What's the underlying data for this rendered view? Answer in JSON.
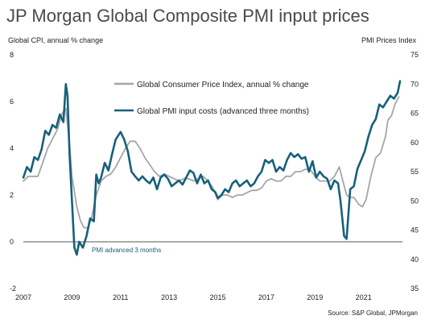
{
  "chart_data": {
    "type": "line",
    "title": "JP Morgan Global Composite PMI input prices",
    "ylabel_left": "Global CPI, annual % change",
    "ylabel_right": "PMI Prices Index",
    "source": "Source: S&P Global, JPMorgan",
    "annotation": "PMI advanced 3 months",
    "x_range": [
      2007.0,
      2022.6
    ],
    "x_ticks": [
      "2007",
      "2009",
      "2011",
      "2013",
      "2015",
      "2017",
      "2019",
      "2021"
    ],
    "y_left_range": [
      -2,
      8
    ],
    "y_left_ticks": [
      "-2",
      "0",
      "2",
      "4",
      "6",
      "8"
    ],
    "y_right_range": [
      35,
      75
    ],
    "y_right_ticks": [
      "35",
      "40",
      "45",
      "50",
      "55",
      "60",
      "65",
      "70",
      "75"
    ],
    "reference_line_left": 0,
    "series": [
      {
        "name": "Global Consumer Price Index, annual % change",
        "color": "#a6a6a6",
        "axis": "left",
        "points": [
          [
            2007.0,
            2.6
          ],
          [
            2007.2,
            2.8
          ],
          [
            2007.4,
            2.8
          ],
          [
            2007.6,
            2.8
          ],
          [
            2007.8,
            3.4
          ],
          [
            2008.0,
            4.0
          ],
          [
            2008.2,
            4.4
          ],
          [
            2008.4,
            4.8
          ],
          [
            2008.6,
            5.5
          ],
          [
            2008.75,
            5.7
          ],
          [
            2008.9,
            4.2
          ],
          [
            2009.0,
            2.8
          ],
          [
            2009.2,
            1.5
          ],
          [
            2009.35,
            0.9
          ],
          [
            2009.5,
            0.6
          ],
          [
            2009.65,
            0.6
          ],
          [
            2009.8,
            1.0
          ],
          [
            2010.0,
            2.0
          ],
          [
            2010.2,
            2.6
          ],
          [
            2010.4,
            2.8
          ],
          [
            2010.6,
            2.9
          ],
          [
            2010.8,
            3.2
          ],
          [
            2011.0,
            3.6
          ],
          [
            2011.2,
            4.0
          ],
          [
            2011.4,
            4.3
          ],
          [
            2011.6,
            4.3
          ],
          [
            2011.8,
            4.0
          ],
          [
            2012.0,
            3.6
          ],
          [
            2012.2,
            3.3
          ],
          [
            2012.4,
            3.0
          ],
          [
            2012.6,
            2.8
          ],
          [
            2012.8,
            2.9
          ],
          [
            2013.0,
            2.8
          ],
          [
            2013.2,
            2.7
          ],
          [
            2013.4,
            2.6
          ],
          [
            2013.6,
            2.7
          ],
          [
            2013.8,
            2.7
          ],
          [
            2014.0,
            2.6
          ],
          [
            2014.2,
            2.7
          ],
          [
            2014.4,
            2.8
          ],
          [
            2014.6,
            2.6
          ],
          [
            2014.8,
            2.3
          ],
          [
            2015.0,
            1.8
          ],
          [
            2015.2,
            2.0
          ],
          [
            2015.4,
            2.0
          ],
          [
            2015.6,
            1.9
          ],
          [
            2015.8,
            2.0
          ],
          [
            2016.0,
            2.0
          ],
          [
            2016.2,
            2.1
          ],
          [
            2016.4,
            2.2
          ],
          [
            2016.6,
            2.2
          ],
          [
            2016.8,
            2.3
          ],
          [
            2017.0,
            2.6
          ],
          [
            2017.2,
            2.7
          ],
          [
            2017.4,
            2.6
          ],
          [
            2017.6,
            2.6
          ],
          [
            2017.8,
            2.8
          ],
          [
            2018.0,
            2.8
          ],
          [
            2018.2,
            3.0
          ],
          [
            2018.4,
            3.0
          ],
          [
            2018.6,
            3.1
          ],
          [
            2018.8,
            3.1
          ],
          [
            2019.0,
            2.8
          ],
          [
            2019.2,
            2.6
          ],
          [
            2019.4,
            2.6
          ],
          [
            2019.6,
            2.6
          ],
          [
            2019.8,
            2.8
          ],
          [
            2020.0,
            3.2
          ],
          [
            2020.15,
            2.6
          ],
          [
            2020.3,
            2.0
          ],
          [
            2020.45,
            1.9
          ],
          [
            2020.6,
            1.9
          ],
          [
            2020.8,
            1.6
          ],
          [
            2020.95,
            1.5
          ],
          [
            2021.1,
            1.8
          ],
          [
            2021.3,
            2.8
          ],
          [
            2021.5,
            3.6
          ],
          [
            2021.7,
            3.8
          ],
          [
            2021.9,
            4.5
          ],
          [
            2022.0,
            5.2
          ],
          [
            2022.15,
            5.4
          ],
          [
            2022.3,
            5.9
          ],
          [
            2022.45,
            6.2
          ]
        ]
      },
      {
        "name": "Global PMI input costs (advanced three months)",
        "color": "#17607a",
        "axis": "right",
        "points": [
          [
            2007.0,
            54.0
          ],
          [
            2007.15,
            55.8
          ],
          [
            2007.3,
            55.0
          ],
          [
            2007.45,
            57.5
          ],
          [
            2007.6,
            57.0
          ],
          [
            2007.75,
            58.8
          ],
          [
            2007.9,
            62.0
          ],
          [
            2008.05,
            61.3
          ],
          [
            2008.2,
            63.0
          ],
          [
            2008.35,
            62.5
          ],
          [
            2008.5,
            64.8
          ],
          [
            2008.65,
            63.5
          ],
          [
            2008.75,
            70.0
          ],
          [
            2008.82,
            68.0
          ],
          [
            2008.9,
            58.0
          ],
          [
            2009.0,
            50.0
          ],
          [
            2009.1,
            42.0
          ],
          [
            2009.2,
            40.8
          ],
          [
            2009.3,
            43.0
          ],
          [
            2009.45,
            42.0
          ],
          [
            2009.6,
            44.0
          ],
          [
            2009.75,
            47.0
          ],
          [
            2009.9,
            46.5
          ],
          [
            2010.0,
            54.5
          ],
          [
            2010.1,
            53.0
          ],
          [
            2010.2,
            54.0
          ],
          [
            2010.35,
            56.5
          ],
          [
            2010.5,
            55.2
          ],
          [
            2010.65,
            58.0
          ],
          [
            2010.8,
            60.5
          ],
          [
            2011.0,
            61.8
          ],
          [
            2011.15,
            60.5
          ],
          [
            2011.3,
            58.5
          ],
          [
            2011.45,
            55.0
          ],
          [
            2011.6,
            54.2
          ],
          [
            2011.75,
            53.5
          ],
          [
            2011.9,
            54.2
          ],
          [
            2012.05,
            53.5
          ],
          [
            2012.2,
            53.0
          ],
          [
            2012.35,
            54.0
          ],
          [
            2012.5,
            52.0
          ],
          [
            2012.65,
            54.0
          ],
          [
            2012.8,
            54.5
          ],
          [
            2012.95,
            53.8
          ],
          [
            2013.1,
            52.5
          ],
          [
            2013.25,
            53.0
          ],
          [
            2013.4,
            53.5
          ],
          [
            2013.55,
            52.8
          ],
          [
            2013.7,
            54.0
          ],
          [
            2013.85,
            55.2
          ],
          [
            2014.0,
            54.8
          ],
          [
            2014.15,
            53.0
          ],
          [
            2014.3,
            54.5
          ],
          [
            2014.45,
            53.0
          ],
          [
            2014.6,
            53.5
          ],
          [
            2014.75,
            52.0
          ],
          [
            2014.9,
            51.5
          ],
          [
            2015.0,
            50.5
          ],
          [
            2015.15,
            51.0
          ],
          [
            2015.3,
            52.0
          ],
          [
            2015.45,
            51.5
          ],
          [
            2015.6,
            53.0
          ],
          [
            2015.75,
            53.5
          ],
          [
            2015.9,
            52.5
          ],
          [
            2016.05,
            53.0
          ],
          [
            2016.2,
            53.5
          ],
          [
            2016.35,
            52.5
          ],
          [
            2016.5,
            53.0
          ],
          [
            2016.65,
            54.2
          ],
          [
            2016.8,
            55.0
          ],
          [
            2016.95,
            57.0
          ],
          [
            2017.1,
            56.5
          ],
          [
            2017.25,
            57.0
          ],
          [
            2017.4,
            55.0
          ],
          [
            2017.55,
            55.8
          ],
          [
            2017.7,
            55.2
          ],
          [
            2017.85,
            57.0
          ],
          [
            2018.0,
            58.2
          ],
          [
            2018.15,
            57.5
          ],
          [
            2018.3,
            58.0
          ],
          [
            2018.45,
            57.2
          ],
          [
            2018.6,
            57.5
          ],
          [
            2018.75,
            55.0
          ],
          [
            2018.9,
            56.8
          ],
          [
            2019.05,
            54.0
          ],
          [
            2019.2,
            55.0
          ],
          [
            2019.35,
            54.2
          ],
          [
            2019.5,
            53.8
          ],
          [
            2019.65,
            52.0
          ],
          [
            2019.8,
            53.5
          ],
          [
            2019.95,
            53.0
          ],
          [
            2020.05,
            50.0
          ],
          [
            2020.2,
            44.0
          ],
          [
            2020.3,
            43.5
          ],
          [
            2020.45,
            52.0
          ],
          [
            2020.6,
            52.5
          ],
          [
            2020.75,
            55.5
          ],
          [
            2020.9,
            57.0
          ],
          [
            2021.05,
            58.5
          ],
          [
            2021.2,
            61.0
          ],
          [
            2021.35,
            63.0
          ],
          [
            2021.5,
            64.0
          ],
          [
            2021.65,
            66.5
          ],
          [
            2021.8,
            66.0
          ],
          [
            2021.95,
            67.0
          ],
          [
            2022.1,
            68.0
          ],
          [
            2022.25,
            67.5
          ],
          [
            2022.4,
            68.5
          ],
          [
            2022.5,
            70.5
          ]
        ]
      }
    ],
    "grid": false,
    "legend": "inside-top-center"
  }
}
